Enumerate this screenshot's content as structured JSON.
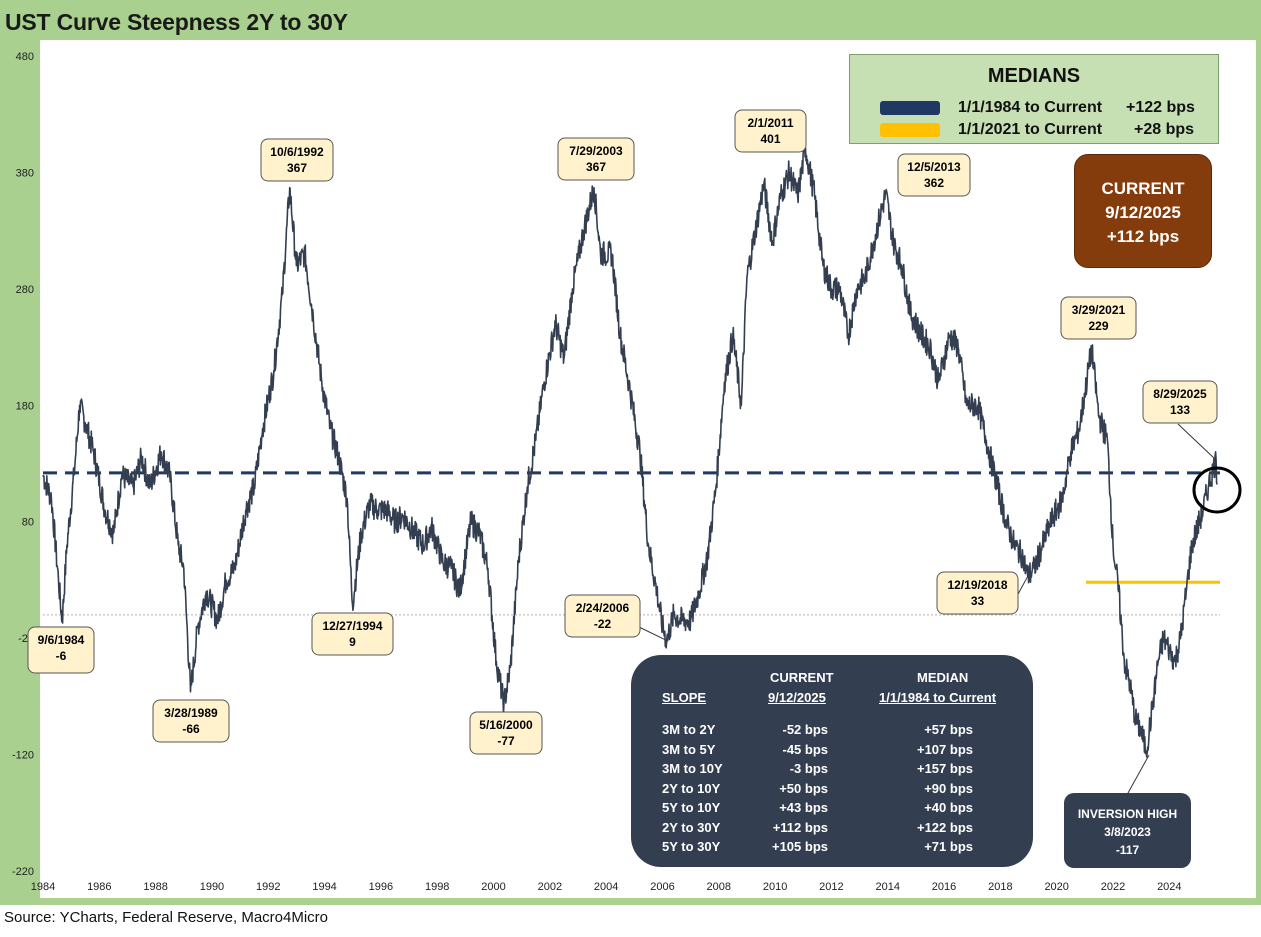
{
  "title": "UST Curve Steepness 2Y to 30Y",
  "source": "Source: YCharts, Federal Reserve, Macro4Micro",
  "colors": {
    "line": "#333f50",
    "median_1984": "#1f3864",
    "median_2021": "#ffc000",
    "current_box": "#843c0c",
    "frame": "#a9d08e"
  },
  "medians": {
    "title": "MEDIANS",
    "rows": [
      {
        "label": "1/1/1984 to Current",
        "value": "+122 bps",
        "color": "#1f3864"
      },
      {
        "label": "1/1/2021 to Current",
        "value": "+28 bps",
        "color": "#ffc000"
      }
    ]
  },
  "current": {
    "title": "CURRENT",
    "date": "9/12/2025",
    "value": "+112 bps"
  },
  "inversion": {
    "line1": "INVERSION HIGH",
    "line2": "3/8/2023",
    "line3": "-117"
  },
  "slope_table": {
    "header_current": "CURRENT",
    "header_median": "MEDIAN",
    "sub_slope": "SLOPE",
    "sub_current": "9/12/2025",
    "sub_median": "1/1/1984 to Current",
    "rows": [
      {
        "slope": "3M to 2Y",
        "current": "-52 bps",
        "median": "+57 bps"
      },
      {
        "slope": "3M to 5Y",
        "current": "-45 bps",
        "median": "+107 bps"
      },
      {
        "slope": "3M to 10Y",
        "current": "-3 bps",
        "median": "+157 bps"
      },
      {
        "slope": "2Y to 10Y",
        "current": "+50 bps",
        "median": "+90 bps"
      },
      {
        "slope": "5Y to 10Y",
        "current": "+43 bps",
        "median": "+40 bps"
      },
      {
        "slope": "2Y to 30Y",
        "current": "+112 bps",
        "median": "+122 bps"
      },
      {
        "slope": "5Y to 30Y",
        "current": "+105 bps",
        "median": "+71 bps"
      }
    ]
  },
  "chart_data": {
    "type": "line",
    "title": "UST Curve Steepness 2Y to 30Y",
    "xlabel": "",
    "ylabel": "",
    "xlim": [
      1984.0,
      2025.8
    ],
    "ylim": [
      -220,
      480
    ],
    "y_ticks": [
      480,
      380,
      280,
      180,
      80,
      -20,
      -120,
      -220
    ],
    "x_ticks": [
      1984,
      1986,
      1988,
      1990,
      1992,
      1994,
      1996,
      1998,
      2000,
      2002,
      2004,
      2006,
      2008,
      2010,
      2012,
      2014,
      2016,
      2018,
      2020,
      2022,
      2024
    ],
    "grid": false,
    "series": [
      {
        "x": [
          1984.0,
          1984.3,
          1984.55,
          1984.68,
          1984.85,
          1985.1,
          1985.3,
          1985.5,
          1985.8,
          1986.2,
          1986.5,
          1986.8,
          1987.2,
          1987.5,
          1987.8,
          1988.2,
          1988.5,
          1988.8,
          1989.0,
          1989.24,
          1989.5,
          1989.8,
          1990.2,
          1990.5,
          1990.8,
          1991.2,
          1991.5,
          1991.8,
          1992.2,
          1992.5,
          1992.76,
          1993.0,
          1993.3,
          1993.6,
          1993.9,
          1994.2,
          1994.5,
          1994.8,
          1994.99,
          1995.3,
          1995.6,
          1995.9,
          1996.2,
          1996.5,
          1996.8,
          1997.2,
          1997.5,
          1997.8,
          1998.2,
          1998.5,
          1998.8,
          1999.2,
          1999.5,
          1999.8,
          2000.1,
          2000.37,
          2000.6,
          2000.9,
          2001.2,
          2001.5,
          2001.8,
          2002.2,
          2002.5,
          2002.8,
          2003.2,
          2003.57,
          2003.8,
          2004.2,
          2004.5,
          2004.8,
          2005.2,
          2005.5,
          2005.8,
          2006.0,
          2006.15,
          2006.4,
          2006.7,
          2007.0,
          2007.3,
          2007.6,
          2007.9,
          2008.2,
          2008.5,
          2008.8,
          2009.0,
          2009.3,
          2009.6,
          2009.9,
          2010.2,
          2010.5,
          2010.8,
          2011.08,
          2011.4,
          2011.7,
          2012.0,
          2012.3,
          2012.6,
          2012.9,
          2013.2,
          2013.5,
          2013.7,
          2013.93,
          2014.2,
          2014.5,
          2014.8,
          2015.2,
          2015.5,
          2015.8,
          2016.2,
          2016.5,
          2016.8,
          2017.2,
          2017.5,
          2017.8,
          2018.2,
          2018.5,
          2018.8,
          2018.97,
          2019.2,
          2019.5,
          2019.8,
          2020.2,
          2020.5,
          2020.8,
          2021.0,
          2021.24,
          2021.5,
          2021.8,
          2022.0,
          2022.2,
          2022.4,
          2022.6,
          2022.8,
          2023.0,
          2023.18,
          2023.4,
          2023.6,
          2023.8,
          2024.0,
          2024.2,
          2024.4,
          2024.6,
          2024.8,
          2025.0,
          2025.2,
          2025.4,
          2025.66,
          2025.7
        ],
        "y": [
          120,
          100,
          30,
          -6,
          60,
          120,
          180,
          165,
          140,
          90,
          70,
          120,
          110,
          135,
          110,
          140,
          120,
          60,
          40,
          -66,
          -10,
          20,
          -5,
          30,
          40,
          90,
          110,
          160,
          210,
          275,
          367,
          300,
          310,
          255,
          200,
          160,
          135,
          100,
          9,
          70,
          95,
          90,
          90,
          80,
          85,
          70,
          60,
          75,
          45,
          40,
          20,
          80,
          70,
          40,
          -40,
          -77,
          -45,
          50,
          110,
          150,
          200,
          250,
          220,
          280,
          330,
          367,
          310,
          310,
          240,
          200,
          140,
          60,
          20,
          -10,
          -22,
          0,
          -5,
          -5,
          20,
          50,
          110,
          200,
          240,
          180,
          290,
          330,
          370,
          320,
          360,
          380,
          360,
          401,
          360,
          300,
          280,
          280,
          240,
          280,
          290,
          320,
          340,
          362,
          320,
          300,
          260,
          240,
          230,
          200,
          240,
          230,
          180,
          180,
          150,
          120,
          80,
          60,
          50,
          33,
          40,
          60,
          80,
          100,
          140,
          160,
          190,
          229,
          170,
          150,
          60,
          20,
          -40,
          -60,
          -90,
          -100,
          -117,
          -80,
          -40,
          -20,
          -30,
          -40,
          -20,
          20,
          60,
          75,
          90,
          112,
          133,
          112
        ]
      }
    ],
    "reference_lines": [
      {
        "name": "1/1/1984 to Current",
        "y": 122,
        "from": 1984.0,
        "to": 2025.8
      },
      {
        "name": "1/1/2021 to Current",
        "y": 28,
        "from": 2021.0,
        "to": 2025.8
      }
    ],
    "annotations": [
      {
        "date": "9/6/1984",
        "value": "-6",
        "x": 1984.68,
        "y": -6
      },
      {
        "date": "3/28/1989",
        "value": "-66",
        "x": 1989.24,
        "y": -66
      },
      {
        "date": "10/6/1992",
        "value": "367",
        "x": 1992.76,
        "y": 367
      },
      {
        "date": "12/27/1994",
        "value": "9",
        "x": 1994.99,
        "y": 9
      },
      {
        "date": "5/16/2000",
        "value": "-77",
        "x": 2000.37,
        "y": -77
      },
      {
        "date": "7/29/2003",
        "value": "367",
        "x": 2003.57,
        "y": 367
      },
      {
        "date": "2/24/2006",
        "value": "-22",
        "x": 2006.15,
        "y": -22
      },
      {
        "date": "2/1/2011",
        "value": "401",
        "x": 2011.08,
        "y": 401
      },
      {
        "date": "12/5/2013",
        "value": "362",
        "x": 2013.93,
        "y": 362
      },
      {
        "date": "12/19/2018",
        "value": "33",
        "x": 2018.97,
        "y": 33
      },
      {
        "date": "3/29/2021",
        "value": "229",
        "x": 2021.24,
        "y": 229
      },
      {
        "date": "8/29/2025",
        "value": "133",
        "x": 2025.66,
        "y": 133
      }
    ]
  }
}
